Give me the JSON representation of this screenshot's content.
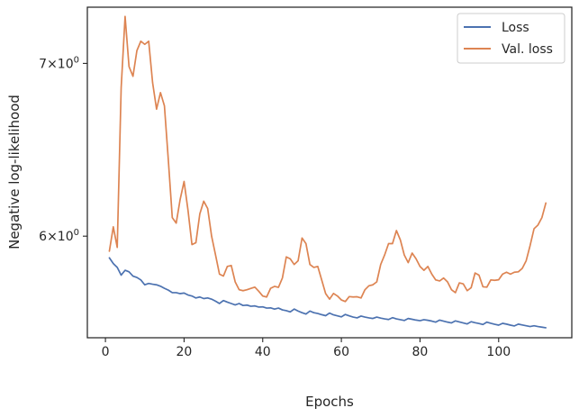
{
  "chart_data": {
    "type": "line",
    "xlabel": "Epochs",
    "ylabel": "Negative log-likelihood",
    "yscale": "log",
    "xlim": [
      -4.6,
      118.6
    ],
    "ylim": [
      5.48,
      7.36
    ],
    "xticks": [
      {
        "value": 0,
        "label": "0"
      },
      {
        "value": 20,
        "label": "20"
      },
      {
        "value": 40,
        "label": "40"
      },
      {
        "value": 60,
        "label": "60"
      },
      {
        "value": 80,
        "label": "80"
      },
      {
        "value": 100,
        "label": "100"
      }
    ],
    "yticks": [
      {
        "value": 6.0,
        "base": "6",
        "mult": "×",
        "exp_base": "10",
        "exp": "0"
      },
      {
        "value": 7.0,
        "base": "7",
        "mult": "×",
        "exp_base": "10",
        "exp": "0"
      }
    ],
    "grid": false,
    "legend_position": "top-right",
    "x_start": 1,
    "series": [
      {
        "name": "Loss",
        "color": "#4c72b0",
        "values": [
          5.885,
          5.855,
          5.835,
          5.795,
          5.82,
          5.812,
          5.79,
          5.783,
          5.77,
          5.745,
          5.752,
          5.748,
          5.745,
          5.738,
          5.727,
          5.718,
          5.705,
          5.705,
          5.7,
          5.703,
          5.693,
          5.688,
          5.678,
          5.683,
          5.675,
          5.678,
          5.672,
          5.662,
          5.65,
          5.665,
          5.657,
          5.65,
          5.643,
          5.65,
          5.64,
          5.642,
          5.636,
          5.638,
          5.632,
          5.633,
          5.627,
          5.628,
          5.622,
          5.627,
          5.618,
          5.614,
          5.608,
          5.622,
          5.612,
          5.604,
          5.597,
          5.612,
          5.604,
          5.6,
          5.594,
          5.589,
          5.602,
          5.593,
          5.588,
          5.583,
          5.595,
          5.588,
          5.582,
          5.578,
          5.587,
          5.582,
          5.578,
          5.575,
          5.582,
          5.577,
          5.573,
          5.57,
          5.579,
          5.573,
          5.569,
          5.565,
          5.575,
          5.571,
          5.567,
          5.564,
          5.569,
          5.566,
          5.562,
          5.557,
          5.567,
          5.562,
          5.557,
          5.553,
          5.563,
          5.558,
          5.553,
          5.548,
          5.559,
          5.554,
          5.55,
          5.545,
          5.557,
          5.551,
          5.546,
          5.542,
          5.551,
          5.547,
          5.542,
          5.538,
          5.547,
          5.543,
          5.539,
          5.535,
          5.539,
          5.535,
          5.532,
          5.529
        ]
      },
      {
        "name": "Val. loss",
        "color": "#dd8452",
        "values": [
          5.92,
          6.05,
          5.94,
          6.85,
          7.3,
          6.98,
          6.92,
          7.08,
          7.14,
          7.12,
          7.14,
          6.88,
          6.72,
          6.82,
          6.74,
          6.42,
          6.1,
          6.07,
          6.2,
          6.3,
          6.14,
          5.955,
          5.965,
          6.12,
          6.19,
          6.15,
          6.0,
          5.9,
          5.8,
          5.79,
          5.84,
          5.845,
          5.76,
          5.72,
          5.715,
          5.72,
          5.727,
          5.733,
          5.712,
          5.688,
          5.683,
          5.727,
          5.737,
          5.732,
          5.78,
          5.89,
          5.88,
          5.85,
          5.87,
          5.99,
          5.96,
          5.85,
          5.835,
          5.84,
          5.77,
          5.7,
          5.672,
          5.701,
          5.688,
          5.668,
          5.66,
          5.685,
          5.683,
          5.684,
          5.678,
          5.72,
          5.74,
          5.745,
          5.76,
          5.85,
          5.9,
          5.96,
          5.96,
          6.03,
          5.98,
          5.9,
          5.86,
          5.91,
          5.88,
          5.84,
          5.82,
          5.84,
          5.8,
          5.77,
          5.765,
          5.78,
          5.76,
          5.72,
          5.705,
          5.755,
          5.75,
          5.715,
          5.73,
          5.806,
          5.795,
          5.735,
          5.733,
          5.77,
          5.768,
          5.771,
          5.8,
          5.81,
          5.8,
          5.81,
          5.812,
          5.83,
          5.87,
          5.95,
          6.04,
          6.06,
          6.1,
          6.18
        ]
      }
    ]
  }
}
